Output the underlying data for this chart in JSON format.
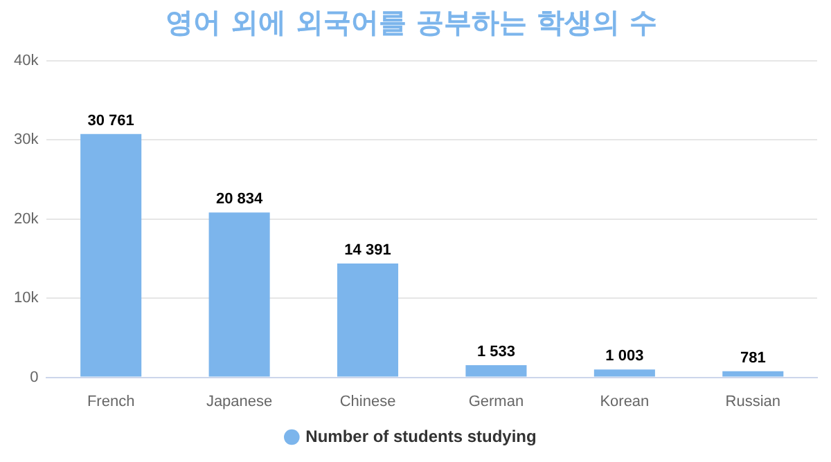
{
  "chart_data": {
    "type": "bar",
    "title": "영어 외에 외국어를 공부하는 학생의 수",
    "categories": [
      "French",
      "Japanese",
      "Chinese",
      "German",
      "Korean",
      "Russian"
    ],
    "series": [
      {
        "name": "Number of students studying",
        "color": "#7cb5ec",
        "values": [
          30761,
          20834,
          14391,
          1533,
          1003,
          781
        ],
        "value_labels": [
          "30 761",
          "20 834",
          "14 391",
          "1 533",
          "1 003",
          "781"
        ]
      }
    ],
    "ylim": [
      0,
      40000
    ],
    "yticks": [
      0,
      {
        "value": 10000,
        "label": "10k"
      },
      {
        "value": 20000,
        "label": "20k"
      },
      {
        "value": 30000,
        "label": "30k"
      },
      {
        "value": 40000,
        "label": "40k"
      }
    ],
    "grid": "y",
    "legend": "bottom"
  }
}
